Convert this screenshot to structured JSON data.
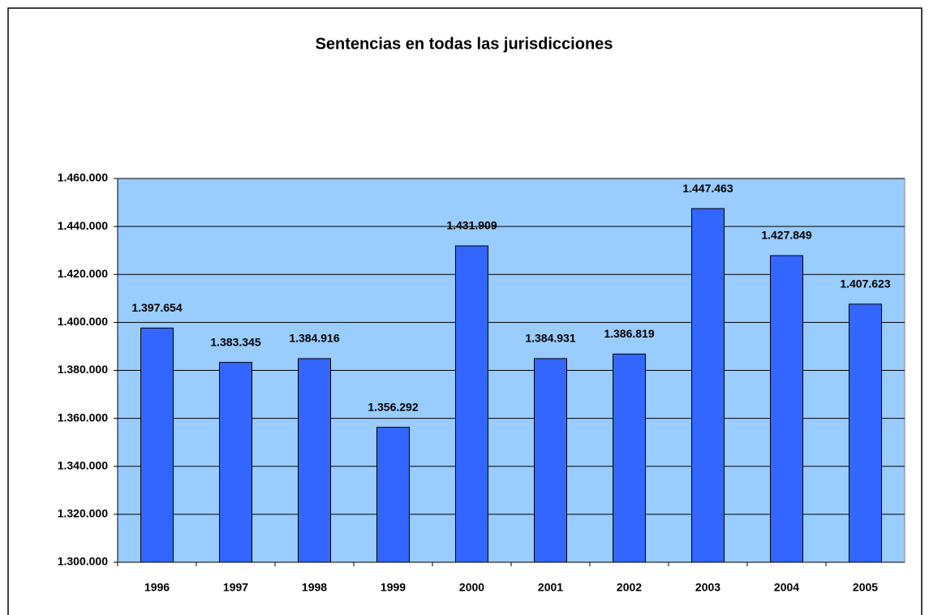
{
  "chart_data": {
    "type": "bar",
    "title": "Sentencias en todas las jurisdicciones",
    "categories": [
      "1996",
      "1997",
      "1998",
      "1999",
      "2000",
      "2001",
      "2002",
      "2003",
      "2004",
      "2005"
    ],
    "values": [
      1397654,
      1383345,
      1384916,
      1356292,
      1431909,
      1384931,
      1386819,
      1447463,
      1427849,
      1407623
    ],
    "value_labels": [
      "1.397.654",
      "1.383.345",
      "1.384.916",
      "1.356.292",
      "1.431.909",
      "1.384.931",
      "1.386.819",
      "1.447.463",
      "1.427.849",
      "1.407.623"
    ],
    "color": "#3366ff",
    "background": "#99ccff",
    "ylim": [
      1300000,
      1460000
    ],
    "yticks": [
      {
        "value": 1300000,
        "label": "1.300.000"
      },
      {
        "value": 1320000,
        "label": "1.320.000"
      },
      {
        "value": 1340000,
        "label": "1.340.000"
      },
      {
        "value": 1360000,
        "label": "1.360.000"
      },
      {
        "value": 1380000,
        "label": "1.380.000"
      },
      {
        "value": 1400000,
        "label": "1.400.000"
      },
      {
        "value": 1420000,
        "label": "1.420.000"
      },
      {
        "value": 1440000,
        "label": "1.440.000"
      },
      {
        "value": 1460000,
        "label": "1.460.000"
      }
    ],
    "grid": true
  }
}
